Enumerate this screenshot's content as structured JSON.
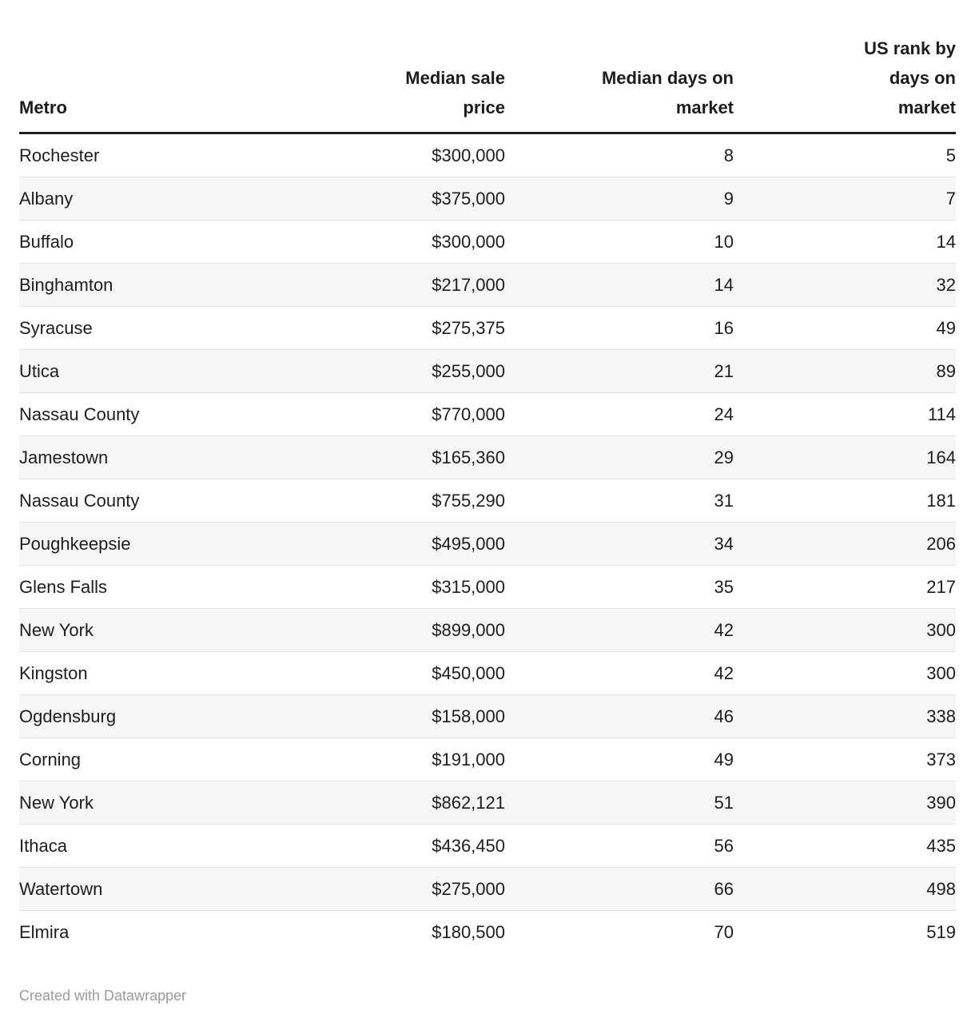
{
  "chart_data": {
    "type": "table",
    "columns": [
      {
        "id": "metro",
        "title": "Metro",
        "label": "Metro",
        "align": "left"
      },
      {
        "id": "median-sale-price",
        "title": "Median sale price",
        "label": "Median sale\nprice",
        "align": "right"
      },
      {
        "id": "median-days-on-market",
        "title": "Median days on market",
        "label": "Median days on\nmarket",
        "align": "right"
      },
      {
        "id": "us-rank-days-on-market",
        "title": "US rank by days on market",
        "label": "US rank by\ndays on\nmarket",
        "align": "right"
      }
    ],
    "rows": [
      [
        "Rochester",
        "$300,000",
        8,
        5
      ],
      [
        "Albany",
        "$375,000",
        9,
        7
      ],
      [
        "Buffalo",
        "$300,000",
        10,
        14
      ],
      [
        "Binghamton",
        "$217,000",
        14,
        32
      ],
      [
        "Syracuse",
        "$275,375",
        16,
        49
      ],
      [
        "Utica",
        "$255,000",
        21,
        89
      ],
      [
        "Nassau County",
        "$770,000",
        24,
        114
      ],
      [
        "Jamestown",
        "$165,360",
        29,
        164
      ],
      [
        "Nassau County",
        "$755,290",
        31,
        181
      ],
      [
        "Poughkeepsie",
        "$495,000",
        34,
        206
      ],
      [
        "Glens Falls",
        "$315,000",
        35,
        217
      ],
      [
        "New York",
        "$899,000",
        42,
        300
      ],
      [
        "Kingston",
        "$450,000",
        42,
        300
      ],
      [
        "Ogdensburg",
        "$158,000",
        46,
        338
      ],
      [
        "Corning",
        "$191,000",
        49,
        373
      ],
      [
        "New York",
        "$862,121",
        51,
        390
      ],
      [
        "Ithaca",
        "$436,450",
        56,
        435
      ],
      [
        "Watertown",
        "$275,000",
        66,
        498
      ],
      [
        "Elmira",
        "$180,500",
        70,
        519
      ]
    ],
    "layout": {
      "zebra_striping": true,
      "header_rule": true
    }
  },
  "colors": {
    "header_rule": "#1f1f1f",
    "row_stripe": "#f6f6f6",
    "row_border": "#e3e3e3",
    "text": "#1d1d1d",
    "credit_text": "#9b9b9b"
  },
  "footer": {
    "credit": "Created with Datawrapper"
  }
}
